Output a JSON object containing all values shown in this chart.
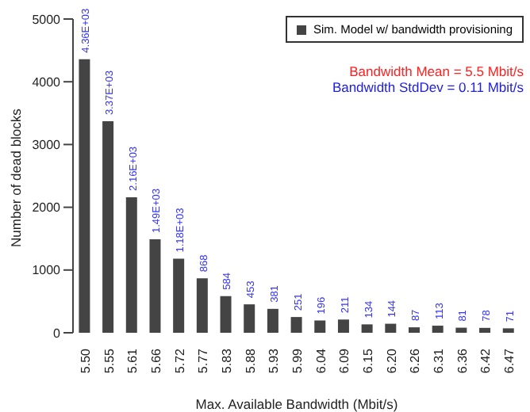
{
  "chart_data": {
    "type": "bar",
    "xlabel": "Max. Available Bandwidth (Mbit/s)",
    "ylabel": "Number of dead blocks",
    "categories": [
      "5.50",
      "5.55",
      "5.61",
      "5.66",
      "5.72",
      "5.77",
      "5.83",
      "5.88",
      "5.93",
      "5.99",
      "6.04",
      "6.09",
      "6.15",
      "6.20",
      "6.26",
      "6.31",
      "6.36",
      "6.42",
      "6.47"
    ],
    "series": [
      {
        "name": "Sim. Model w/ bandwidth provisioning",
        "color": "#444444",
        "values": [
          4360,
          3370,
          2160,
          1490,
          1180,
          868,
          584,
          453,
          381,
          251,
          196,
          211,
          134,
          144,
          87,
          113,
          81,
          78,
          71
        ],
        "value_labels": [
          "4.36E+03",
          "3.37E+03",
          "2.16E+03",
          "1.49E+03",
          "1.18E+03",
          "868",
          "584",
          "453",
          "381",
          "251",
          "196",
          "211",
          "134",
          "144",
          "87",
          "113",
          "81",
          "78",
          "71"
        ]
      }
    ],
    "ylim": [
      0,
      5000
    ],
    "yticks": [
      0,
      1000,
      2000,
      3000,
      4000,
      5000
    ],
    "legend": "top right",
    "annotations": [
      "Bandwidth Mean = 5.5 Mbit/s",
      "Bandwidth StdDev = 0.11 Mbit/s"
    ]
  }
}
